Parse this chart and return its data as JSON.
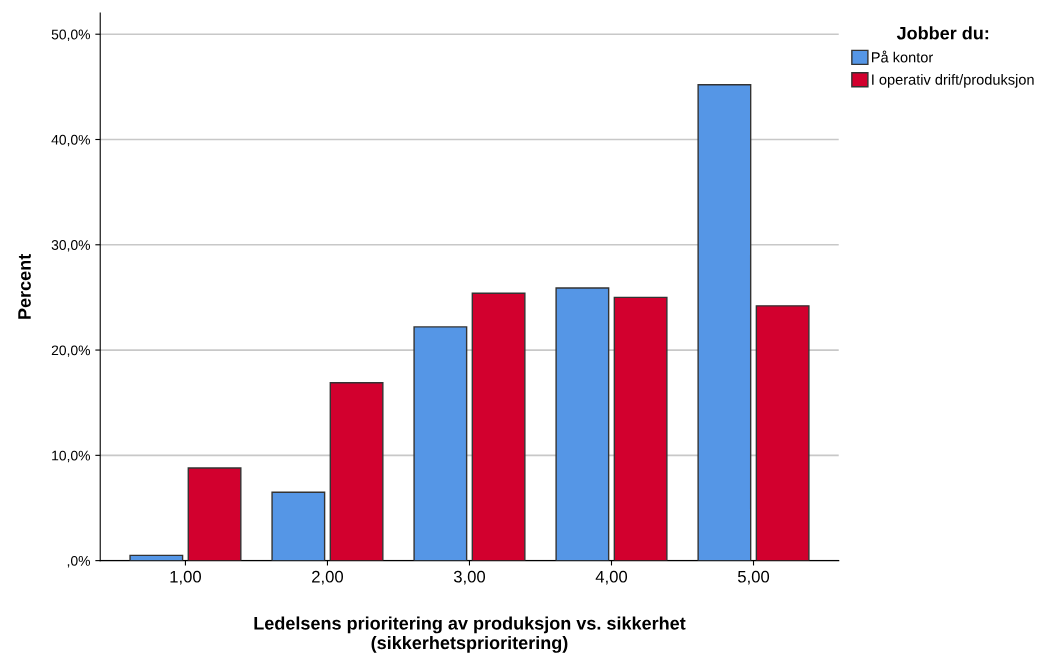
{
  "chart_data": {
    "type": "bar",
    "xlabel": "Ledelsens prioritering av produksjon vs. sikkerhet\n(sikkerhetsprioritering)",
    "ylabel": "Percent",
    "legend_title": "Jobber du:",
    "legend": "top right",
    "grid": "y",
    "categories": [
      "1,00",
      "2,00",
      "3,00",
      "4,00",
      "5,00"
    ],
    "series": [
      {
        "name": "På kontor",
        "color": "#5596e6",
        "values": [
          0.5,
          6.5,
          22.2,
          25.9,
          45.2
        ]
      },
      {
        "name": "I operativ drift/produksjon",
        "color": "#d2002e",
        "values": [
          8.8,
          16.9,
          25.4,
          25.0,
          24.2
        ]
      }
    ],
    "ylim": [
      0,
      52
    ],
    "yticks": [
      {
        "value": 0,
        "label": ",0%"
      },
      {
        "value": 10,
        "label": "10,0%"
      },
      {
        "value": 20,
        "label": "20,0%"
      },
      {
        "value": 30,
        "label": "30,0%"
      },
      {
        "value": 40,
        "label": "40,0%"
      },
      {
        "value": 50,
        "label": "50,0%"
      }
    ]
  }
}
